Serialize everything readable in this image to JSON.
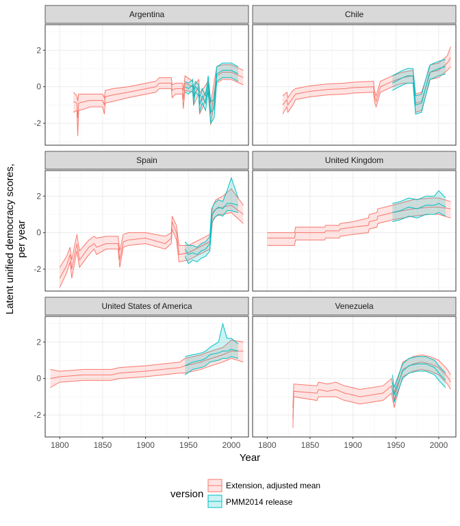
{
  "chart_data": {
    "type": "area",
    "ylabel": "Latent unified democracy scores, per year",
    "xlabel": "Year",
    "xlim": [
      1783,
      2020
    ],
    "ylim": [
      -3.2,
      3.4
    ],
    "x_ticks": [
      1800,
      1850,
      1900,
      1950,
      2000
    ],
    "y_ticks": [
      -2,
      0,
      2
    ],
    "grid": true,
    "legend": {
      "title": "version",
      "position": "bottom",
      "entries": [
        "Extension, adjusted mean",
        "PMM2014 release"
      ]
    },
    "series_colors": {
      "Extension, adjusted mean": "#F8766D",
      "PMM2014 release": "#00BFC4"
    },
    "panels": [
      {
        "title": "Argentina",
        "series": [
          {
            "name": "Extension, adjusted mean",
            "x": [
              1816,
              1820,
              1821,
              1822,
              1830,
              1835,
              1850,
              1852,
              1853,
              1862,
              1880,
              1912,
              1916,
              1930,
              1931,
              1935,
              1943,
              1944,
              1946,
              1955,
              1956,
              1962,
              1963,
              1966,
              1973,
              1976,
              1983,
              1990,
              2000,
              2014
            ],
            "mean": [
              -0.8,
              -0.9,
              -1.7,
              -0.9,
              -0.8,
              -0.75,
              -0.75,
              -1.0,
              -0.55,
              -0.45,
              -0.3,
              0.0,
              0.2,
              0.2,
              -0.2,
              -0.1,
              -0.1,
              -0.7,
              0.2,
              0.0,
              -0.5,
              0.0,
              -0.9,
              -0.7,
              0.0,
              -1.5,
              0.6,
              0.8,
              0.8,
              0.5
            ],
            "lower": [
              -1.4,
              -1.3,
              -2.7,
              -1.3,
              -1.2,
              -1.1,
              -1.1,
              -1.5,
              -0.9,
              -0.8,
              -0.6,
              -0.3,
              -0.1,
              -0.1,
              -0.6,
              -0.4,
              -0.4,
              -1.2,
              -0.2,
              -0.3,
              -1.0,
              -0.4,
              -1.5,
              -1.2,
              -0.3,
              -2.1,
              0.2,
              0.4,
              0.4,
              0.1
            ],
            "upper": [
              -0.3,
              -0.5,
              -0.8,
              -0.4,
              -0.4,
              -0.4,
              -0.4,
              -0.6,
              -0.2,
              -0.1,
              0.0,
              0.3,
              0.5,
              0.5,
              0.1,
              0.2,
              0.2,
              -0.2,
              0.6,
              0.3,
              0.0,
              0.4,
              -0.3,
              -0.2,
              0.3,
              -0.9,
              1.1,
              1.2,
              1.2,
              0.9
            ]
          },
          {
            "name": "PMM2014 release",
            "x": [
              1946,
              1950,
              1955,
              1956,
              1958,
              1962,
              1963,
              1966,
              1970,
              1973,
              1976,
              1980,
              1983,
              1990,
              2000,
              2008
            ],
            "mean": [
              0.0,
              -0.1,
              0.1,
              -0.6,
              0.0,
              -0.2,
              -1.0,
              -0.5,
              -0.9,
              0.2,
              -1.4,
              -1.2,
              0.7,
              0.9,
              0.9,
              0.7
            ],
            "lower": [
              -0.3,
              -0.4,
              -0.2,
              -1.0,
              -0.3,
              -0.5,
              -1.4,
              -0.9,
              -1.3,
              -0.2,
              -2.0,
              -1.7,
              0.3,
              0.5,
              0.5,
              0.3
            ],
            "upper": [
              0.3,
              0.2,
              0.4,
              -0.2,
              0.3,
              0.1,
              -0.6,
              -0.1,
              -0.5,
              0.6,
              -0.8,
              -0.7,
              1.1,
              1.3,
              1.3,
              1.1
            ]
          }
        ]
      },
      {
        "title": "Chile",
        "series": [
          {
            "name": "Extension, adjusted mean",
            "x": [
              1818,
              1823,
              1824,
              1830,
              1833,
              1850,
              1860,
              1870,
              1891,
              1900,
              1924,
              1925,
              1927,
              1932,
              1946,
              1958,
              1970,
              1973,
              1980,
              1989,
              1990,
              2000,
              2010,
              2014
            ],
            "mean": [
              -1.0,
              -0.7,
              -1.0,
              -0.6,
              -0.4,
              -0.25,
              -0.2,
              -0.15,
              -0.1,
              -0.05,
              0.0,
              -0.5,
              -0.8,
              0.0,
              0.3,
              0.5,
              0.6,
              -0.9,
              -0.8,
              0.6,
              0.8,
              0.9,
              1.3,
              1.6
            ],
            "lower": [
              -1.5,
              -1.1,
              -1.4,
              -1.0,
              -0.7,
              -0.55,
              -0.5,
              -0.45,
              -0.4,
              -0.35,
              -0.3,
              -0.8,
              -1.1,
              -0.3,
              0.0,
              0.2,
              0.2,
              -1.4,
              -1.3,
              0.2,
              0.4,
              0.5,
              0.9,
              1.1
            ],
            "upper": [
              -0.5,
              -0.3,
              -0.6,
              -0.2,
              -0.1,
              0.05,
              0.1,
              0.15,
              0.2,
              0.25,
              0.3,
              -0.2,
              -0.5,
              0.3,
              0.6,
              0.8,
              0.9,
              -0.4,
              -0.3,
              1.0,
              1.2,
              1.3,
              1.7,
              2.2
            ]
          },
          {
            "name": "PMM2014 release",
            "x": [
              1946,
              1950,
              1958,
              1964,
              1970,
              1973,
              1980,
              1989,
              1990,
              2000,
              2008
            ],
            "mean": [
              0.2,
              0.3,
              0.5,
              0.6,
              0.6,
              -1.0,
              -0.9,
              0.7,
              0.8,
              1.0,
              1.1
            ],
            "lower": [
              -0.2,
              -0.1,
              0.1,
              0.2,
              0.2,
              -1.5,
              -1.4,
              0.3,
              0.4,
              0.6,
              0.7
            ],
            "upper": [
              0.6,
              0.7,
              0.9,
              1.0,
              1.0,
              -0.5,
              -0.4,
              1.1,
              1.2,
              1.4,
              1.5
            ]
          }
        ]
      },
      {
        "title": "Spain",
        "series": [
          {
            "name": "Extension, adjusted mean",
            "x": [
              1800,
              1808,
              1812,
              1814,
              1820,
              1823,
              1834,
              1840,
              1843,
              1854,
              1860,
              1868,
              1870,
              1874,
              1880,
              1900,
              1923,
              1930,
              1931,
              1936,
              1939,
              1950,
              1975,
              1978,
              1982,
              1990,
              2000,
              2014
            ],
            "mean": [
              -2.5,
              -1.8,
              -1.2,
              -2.0,
              -0.6,
              -1.5,
              -0.8,
              -0.6,
              -0.8,
              -0.6,
              -0.6,
              -0.6,
              -1.5,
              -0.5,
              -0.4,
              -0.3,
              -0.6,
              -0.3,
              0.6,
              0.0,
              -1.2,
              -1.1,
              -0.5,
              1.0,
              1.3,
              1.4,
              1.5,
              1.0
            ],
            "lower": [
              -3.0,
              -2.2,
              -1.6,
              -2.5,
              -1.0,
              -1.9,
              -1.2,
              -0.9,
              -1.2,
              -0.9,
              -0.9,
              -0.9,
              -1.9,
              -0.8,
              -0.7,
              -0.6,
              -0.9,
              -0.6,
              0.2,
              -0.4,
              -1.6,
              -1.5,
              -0.9,
              0.6,
              0.9,
              1.0,
              1.1,
              0.5
            ],
            "upper": [
              -1.9,
              -1.3,
              -0.8,
              -1.5,
              -0.1,
              -1.0,
              -0.4,
              -0.2,
              -0.3,
              -0.2,
              -0.2,
              -0.2,
              -1.0,
              -0.1,
              0.0,
              0.0,
              -0.2,
              0.0,
              0.9,
              0.4,
              -0.7,
              -0.7,
              -0.1,
              1.4,
              1.8,
              2.0,
              2.4,
              1.5
            ]
          },
          {
            "name": "PMM2014 release",
            "x": [
              1946,
              1950,
              1955,
              1960,
              1965,
              1970,
              1975,
              1977,
              1980,
              1985,
              1990,
              1995,
              2000,
              2008
            ],
            "mean": [
              -0.9,
              -1.2,
              -1.1,
              -1.2,
              -1.0,
              -0.9,
              -0.6,
              0.9,
              1.2,
              1.4,
              1.3,
              1.6,
              1.6,
              1.5
            ],
            "lower": [
              -1.3,
              -1.7,
              -1.5,
              -1.6,
              -1.4,
              -1.3,
              -1.0,
              0.5,
              0.8,
              1.0,
              0.9,
              1.2,
              1.2,
              1.1
            ],
            "upper": [
              -0.5,
              -0.7,
              -0.7,
              -0.8,
              -0.6,
              -0.5,
              -0.2,
              1.3,
              1.6,
              1.8,
              1.7,
              2.3,
              3.0,
              1.9
            ]
          }
        ]
      },
      {
        "title": "United Kingdom",
        "series": [
          {
            "name": "Extension, adjusted mean",
            "x": [
              1800,
              1832,
              1833,
              1867,
              1868,
              1884,
              1885,
              1900,
              1918,
              1919,
              1928,
              1929,
              1946,
              1970,
              1990,
              2000,
              2014
            ],
            "mean": [
              -0.3,
              -0.3,
              0.0,
              0.0,
              0.1,
              0.1,
              0.2,
              0.3,
              0.4,
              0.6,
              0.7,
              0.9,
              1.1,
              1.3,
              1.4,
              1.4,
              1.3
            ],
            "lower": [
              -0.7,
              -0.7,
              -0.4,
              -0.4,
              -0.3,
              -0.3,
              -0.2,
              -0.1,
              0.0,
              0.2,
              0.3,
              0.5,
              0.7,
              0.9,
              1.0,
              1.0,
              0.8
            ],
            "upper": [
              0.0,
              0.0,
              0.3,
              0.3,
              0.4,
              0.4,
              0.5,
              0.6,
              0.8,
              1.0,
              1.1,
              1.3,
              1.5,
              1.8,
              1.9,
              1.9,
              1.7
            ]
          },
          {
            "name": "PMM2014 release",
            "x": [
              1946,
              1955,
              1965,
              1975,
              1985,
              1995,
              2000,
              2008
            ],
            "mean": [
              1.1,
              1.2,
              1.4,
              1.3,
              1.5,
              1.5,
              1.6,
              1.4
            ],
            "lower": [
              0.6,
              0.7,
              0.9,
              0.8,
              1.0,
              1.0,
              1.1,
              0.9
            ],
            "upper": [
              1.6,
              1.7,
              1.9,
              1.8,
              2.0,
              2.0,
              2.3,
              1.9
            ]
          }
        ]
      },
      {
        "title": "United States of America",
        "series": [
          {
            "name": "Extension, adjusted mean",
            "x": [
              1789,
              1800,
              1828,
              1860,
              1870,
              1900,
              1920,
              1940,
              1946,
              1965,
              1970,
              1990,
              2000,
              2014
            ],
            "mean": [
              0.0,
              0.1,
              0.2,
              0.2,
              0.3,
              0.4,
              0.5,
              0.6,
              0.7,
              0.9,
              1.0,
              1.3,
              1.5,
              1.5
            ],
            "lower": [
              -0.5,
              -0.2,
              -0.1,
              -0.1,
              0.0,
              0.1,
              0.2,
              0.3,
              0.3,
              0.5,
              0.6,
              0.9,
              1.1,
              0.9
            ],
            "upper": [
              0.5,
              0.4,
              0.5,
              0.5,
              0.6,
              0.7,
              0.8,
              0.9,
              1.1,
              1.3,
              1.4,
              1.7,
              2.1,
              2.0
            ]
          },
          {
            "name": "PMM2014 release",
            "x": [
              1946,
              1955,
              1965,
              1970,
              1975,
              1985,
              1990,
              1995,
              2000,
              2008
            ],
            "mean": [
              0.7,
              0.9,
              1.0,
              1.1,
              1.3,
              1.4,
              1.5,
              1.5,
              1.6,
              1.5
            ],
            "lower": [
              0.2,
              0.5,
              0.6,
              0.7,
              0.9,
              1.0,
              1.1,
              1.1,
              1.2,
              1.1
            ],
            "upper": [
              1.2,
              1.3,
              1.4,
              1.5,
              1.7,
              2.0,
              3.0,
              2.2,
              2.2,
              1.9
            ]
          }
        ]
      },
      {
        "title": "Venezuela",
        "series": [
          {
            "name": "Extension, adjusted mean",
            "x": [
              1830,
              1831,
              1858,
              1860,
              1870,
              1880,
              1890,
              1900,
              1908,
              1935,
              1945,
              1948,
              1950,
              1958,
              1970,
              1980,
              1990,
              2000,
              2010,
              2014
            ],
            "mean": [
              -2.2,
              -0.7,
              -0.8,
              -0.6,
              -0.7,
              -0.6,
              -0.8,
              -0.9,
              -1.0,
              -0.8,
              -0.4,
              -1.2,
              -0.8,
              0.5,
              0.8,
              0.9,
              0.8,
              0.6,
              0.1,
              -0.2
            ],
            "lower": [
              -2.7,
              -1.0,
              -1.2,
              -1.0,
              -1.0,
              -1.0,
              -1.2,
              -1.3,
              -1.4,
              -1.2,
              -0.8,
              -1.6,
              -1.2,
              0.1,
              0.4,
              0.5,
              0.4,
              0.2,
              -0.3,
              -0.6
            ],
            "upper": [
              -1.6,
              -0.3,
              -0.4,
              -0.2,
              -0.3,
              -0.2,
              -0.4,
              -0.5,
              -0.6,
              -0.4,
              0.0,
              -0.8,
              -0.4,
              0.9,
              1.2,
              1.3,
              1.2,
              1.0,
              0.5,
              0.2
            ]
          },
          {
            "name": "PMM2014 release",
            "x": [
              1946,
              1948,
              1950,
              1958,
              1965,
              1975,
              1985,
              1995,
              2000,
              2008
            ],
            "mean": [
              -0.2,
              -0.9,
              -0.6,
              0.4,
              0.7,
              0.8,
              0.8,
              0.6,
              0.3,
              -0.1
            ],
            "lower": [
              -0.6,
              -1.3,
              -1.0,
              0.0,
              0.3,
              0.4,
              0.4,
              0.2,
              -0.1,
              -0.5
            ],
            "upper": [
              0.2,
              -0.5,
              -0.2,
              0.8,
              1.1,
              1.2,
              1.2,
              1.0,
              0.7,
              0.3
            ]
          }
        ]
      }
    ]
  }
}
